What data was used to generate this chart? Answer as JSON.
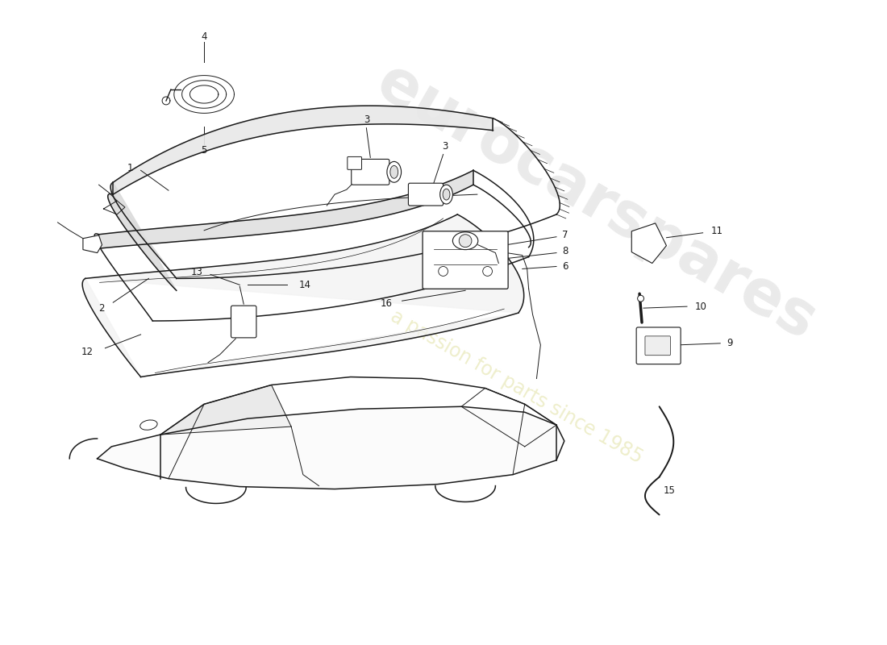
{
  "background_color": "#ffffff",
  "line_color": "#1a1a1a",
  "watermark1": "eurocarspares",
  "watermark2": "a passion for parts since 1985",
  "figsize": [
    11.0,
    8.0
  ],
  "dpi": 100
}
